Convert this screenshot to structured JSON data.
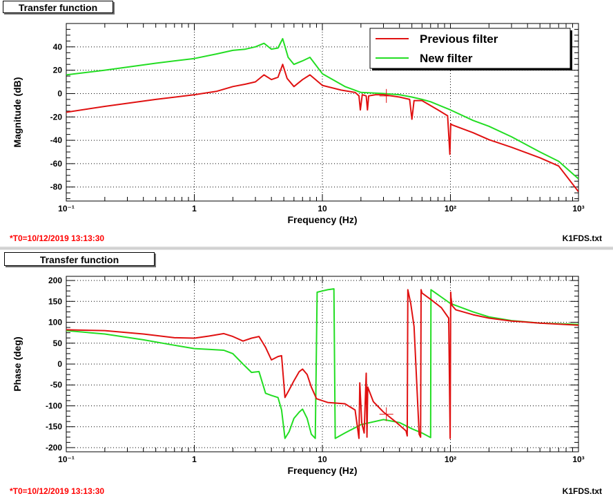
{
  "top_pane": {
    "tab_title": "Transfer function",
    "timestamp": "*T0=10/12/2019 13:13:30",
    "filename": "K1FDS.txt"
  },
  "bottom_pane": {
    "tab_title": "Transfer function",
    "timestamp": "*T0=10/12/2019 13:13:30",
    "filename": "K1FDS.txt"
  },
  "colors": {
    "previous": "#e01010",
    "new": "#22dd22"
  },
  "chart_data": [
    {
      "type": "line",
      "title": "",
      "xlabel": "Frequency (Hz)",
      "ylabel": "Magnitude (dB)",
      "xscale": "log",
      "xlim": [
        0.1,
        1000
      ],
      "ylim": [
        -92,
        60
      ],
      "grid": true,
      "legend_position": "top-right",
      "x_tick_labels": [
        "10⁻¹",
        "1",
        "10",
        "10²",
        "10³"
      ],
      "y_ticks": [
        -80,
        -60,
        -40,
        -20,
        0,
        20,
        40
      ],
      "series": [
        {
          "name": "Previous filter",
          "color": "#e01010",
          "x": [
            0.1,
            0.2,
            0.5,
            1,
            1.5,
            2,
            2.5,
            3,
            3.5,
            4,
            4.5,
            4.9,
            5.3,
            6,
            7,
            8,
            10,
            14,
            18,
            19.3,
            19.8,
            20.5,
            22,
            22.5,
            23,
            26,
            30,
            40,
            48,
            50,
            52,
            60,
            80,
            95,
            99,
            100.5,
            104,
            150,
            200,
            300,
            500,
            700,
            1000
          ],
          "y": [
            -16,
            -11,
            -5,
            -1,
            2,
            6,
            8,
            10,
            16,
            12,
            14,
            25,
            13,
            6,
            12,
            16,
            7,
            3,
            1,
            -2,
            -14,
            -1,
            -2,
            -14,
            -2,
            -1,
            -1,
            -3,
            -5,
            -22,
            -6,
            -6,
            -14,
            -19,
            -52,
            -26,
            -27,
            -33.5,
            -39.5,
            -46,
            -55,
            -62,
            -84
          ]
        },
        {
          "name": "New filter",
          "color": "#22dd22",
          "x": [
            0.1,
            0.2,
            0.5,
            1,
            1.5,
            2,
            2.5,
            3,
            3.5,
            4,
            4.5,
            4.9,
            5.4,
            6,
            7,
            8,
            10,
            15,
            20,
            30,
            40,
            50,
            60,
            70,
            100,
            150,
            200,
            300,
            500,
            700,
            1000
          ],
          "y": [
            16,
            20,
            26,
            30,
            34,
            37,
            38,
            40,
            43,
            38,
            39,
            47,
            31,
            25,
            28,
            31,
            17,
            6,
            1,
            0,
            -1,
            -3,
            -5,
            -7,
            -14,
            -23,
            -28,
            -37,
            -50,
            -58,
            -73
          ]
        }
      ]
    },
    {
      "type": "line",
      "title": "",
      "xlabel": "Frequency (Hz)",
      "ylabel": "Phase (deg)",
      "xscale": "log",
      "xlim": [
        0.1,
        1000
      ],
      "ylim": [
        -210,
        210
      ],
      "grid": true,
      "x_tick_labels": [
        "10⁻¹",
        "1",
        "10",
        "10²",
        "10³"
      ],
      "y_ticks": [
        -200,
        -150,
        -100,
        -50,
        0,
        50,
        100,
        150,
        200
      ],
      "series": [
        {
          "name": "",
          "color": "#e01010",
          "x": [
            0.1,
            0.2,
            0.4,
            0.7,
            1,
            1.3,
            1.7,
            2,
            2.4,
            2.8,
            3.2,
            3.6,
            4,
            4.5,
            4.8,
            5.1,
            5.5,
            6,
            6.6,
            7,
            7.6,
            8.2,
            9,
            11,
            15,
            18,
            19.3,
            19.6,
            20.3,
            21.2,
            22,
            22.3,
            22.6,
            25,
            30,
            38,
            45,
            46,
            46.5,
            49,
            52,
            57,
            58.5,
            59,
            60,
            70,
            85,
            97,
            99.5,
            100.5,
            101,
            103,
            110,
            150,
            200,
            300,
            500,
            1000
          ],
          "y": [
            82,
            80,
            72,
            63,
            62,
            67,
            73,
            66,
            55,
            62,
            66,
            40,
            10,
            18,
            20,
            -80,
            -62,
            -40,
            -18,
            -12,
            -25,
            -55,
            -83,
            -92,
            -95,
            -110,
            -178,
            -45,
            -140,
            -165,
            -22,
            -175,
            -55,
            -90,
            -115,
            -140,
            -160,
            -172,
            178,
            145,
            90,
            -168,
            -175,
            178,
            170,
            155,
            135,
            110,
            -178,
            172,
            160,
            140,
            130,
            118,
            110,
            103,
            98,
            93
          ]
        },
        {
          "name": "",
          "color": "#22dd22",
          "x": [
            0.1,
            0.2,
            0.4,
            0.7,
            1,
            1.3,
            1.7,
            2,
            2.4,
            2.8,
            3.2,
            3.6,
            4,
            4.5,
            4.8,
            5.1,
            5.5,
            6,
            6.6,
            7,
            7.6,
            8.2,
            8.8,
            9.1,
            10,
            11,
            12.3,
            12.6,
            15,
            20,
            30,
            40,
            50,
            60,
            70,
            70.5,
            100,
            150,
            200,
            300,
            500,
            1000
          ],
          "y": [
            80,
            72,
            58,
            45,
            37,
            35,
            33,
            25,
            0,
            -20,
            -18,
            -70,
            -75,
            -80,
            -110,
            -178,
            -162,
            -130,
            -115,
            -108,
            -130,
            -168,
            -178,
            172,
            175,
            178,
            180,
            -178,
            -165,
            -145,
            -133,
            -140,
            -155,
            -165,
            -176,
            178,
            145,
            125,
            113,
            104,
            98,
            95
          ]
        }
      ]
    }
  ]
}
